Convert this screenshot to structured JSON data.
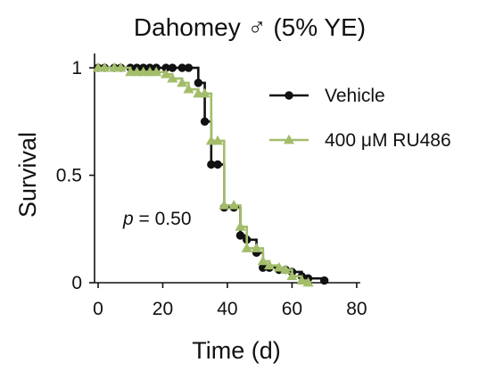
{
  "chart_data": {
    "type": "line",
    "title": "Dahomey ♂ (5% YE)",
    "xlabel": "Time (d)",
    "ylabel": "Survival",
    "xlim": [
      0,
      85
    ],
    "ylim": [
      0,
      1.05
    ],
    "x_ticks": [
      0,
      20,
      40,
      60,
      80
    ],
    "y_ticks": [
      0,
      0.5,
      1
    ],
    "grid": false,
    "legend_position": "top-right",
    "step": true,
    "annotation": {
      "prefix": "p",
      "text": " = 0.50"
    },
    "series": [
      {
        "name": "Vehicle",
        "color": "#111111",
        "marker": "circle",
        "x": [
          0,
          2,
          5,
          7,
          10,
          12,
          14,
          16,
          18,
          21,
          23,
          26,
          28,
          31,
          33,
          35,
          37,
          39,
          42,
          44,
          46,
          49,
          51,
          53,
          56,
          58,
          60,
          63,
          65,
          70
        ],
        "y": [
          1,
          1,
          1,
          1,
          1,
          1,
          1,
          1,
          1,
          1,
          1,
          1,
          1,
          0.93,
          0.75,
          0.55,
          0.55,
          0.35,
          0.35,
          0.22,
          0.2,
          0.14,
          0.07,
          0.07,
          0.06,
          0.06,
          0.05,
          0.03,
          0.02,
          0.01
        ]
      },
      {
        "name": "400 μM RU486",
        "color": "#a3bd6b",
        "marker": "triangle",
        "x": [
          0,
          2,
          5,
          7,
          10,
          12,
          14,
          16,
          18,
          21,
          23,
          26,
          28,
          31,
          33,
          35,
          37,
          39,
          42,
          44,
          46,
          49,
          51,
          53,
          56,
          58,
          60,
          63,
          65
        ],
        "y": [
          1,
          1,
          1,
          1,
          0.98,
          0.98,
          0.98,
          0.98,
          0.98,
          0.97,
          0.95,
          0.93,
          0.9,
          0.88,
          0.88,
          0.66,
          0.66,
          0.36,
          0.36,
          0.26,
          0.16,
          0.16,
          0.1,
          0.08,
          0.07,
          0.06,
          0.03,
          0.01,
          0.0
        ]
      }
    ]
  }
}
